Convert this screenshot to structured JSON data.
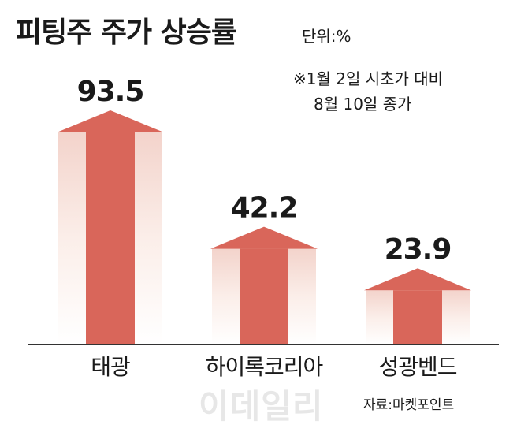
{
  "title": "피팅주 주가 상승률",
  "unit": "단위:%",
  "note_line1": "※1월 2일 시초가 대비",
  "note_line2": "8월 10일 종가",
  "source": "자료:마켓포인트",
  "watermark": "이데일리",
  "colors": {
    "arrow": "#d9665a",
    "shaft_edge": "#f4ddd7",
    "axis": "#333333"
  },
  "chart_data": {
    "type": "bar",
    "categories": [
      "태광",
      "하이록코리아",
      "성광벤드"
    ],
    "values": [
      93.5,
      42.2,
      23.9
    ],
    "value_labels": [
      "93.5",
      "42.2",
      "23.9"
    ],
    "title": "피팅주 주가 상승률",
    "xlabel": "",
    "ylabel": "",
    "ylim": [
      0,
      100
    ],
    "grid": false
  }
}
